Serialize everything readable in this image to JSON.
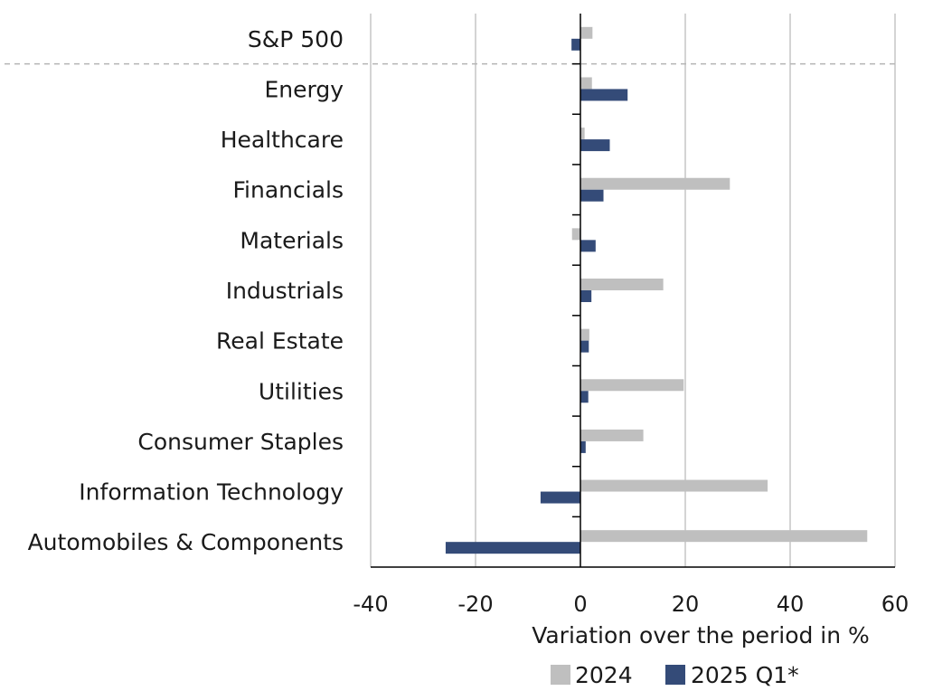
{
  "chart_data": {
    "type": "bar",
    "orientation": "horizontal",
    "categories": [
      "S&P 500",
      "Energy",
      "Healthcare",
      "Financials",
      "Materials",
      "Industrials",
      "Real Estate",
      "Utilities",
      "Consumer Staples",
      "Information Technology",
      "Automobiles & Components"
    ],
    "series": [
      {
        "name": "2024",
        "color": "#bfbfbf",
        "values": [
          2.3,
          2.2,
          0.8,
          28.5,
          -1.6,
          15.8,
          1.7,
          19.7,
          12.0,
          35.7,
          54.7
        ]
      },
      {
        "name": "2025 Q1*",
        "color": "#344b78",
        "values": [
          -1.7,
          9.0,
          5.6,
          4.4,
          2.9,
          2.1,
          1.6,
          1.5,
          1.0,
          -7.6,
          -25.7
        ]
      }
    ],
    "xlabel": "Variation over the period in %",
    "ylabel": "",
    "xlim": [
      -40,
      60
    ],
    "xticks": [
      -40,
      -20,
      0,
      20,
      40,
      60
    ],
    "xtick_labels": [
      "-40",
      "-20",
      "0",
      "20",
      "40",
      "60"
    ],
    "grid": "vertical",
    "separator_after_category": "S&P 500",
    "legend_position": "bottom"
  }
}
